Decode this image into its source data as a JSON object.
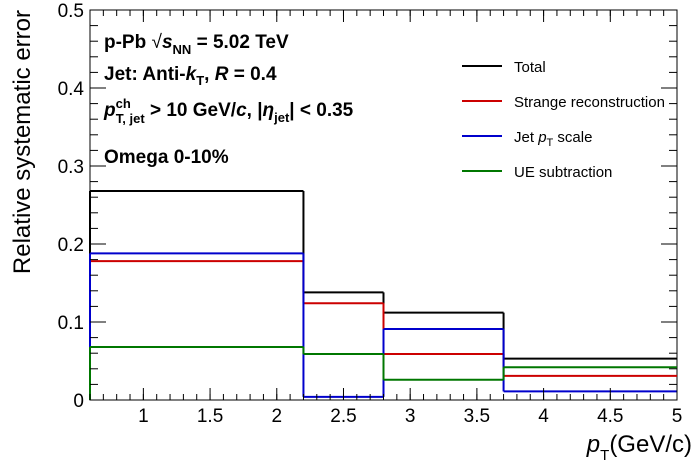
{
  "chart_data": {
    "type": "line",
    "step": true,
    "xlabel": "p_T(GeV/c)",
    "ylabel": "Relative systematic error",
    "xlim": [
      0.6,
      5.0
    ],
    "ylim": [
      0,
      0.5
    ],
    "x_ticks": [
      "1",
      "1.5",
      "2",
      "2.5",
      "3",
      "3.5",
      "4",
      "4.5",
      "5"
    ],
    "y_ticks": [
      "0",
      "0.1",
      "0.2",
      "0.3",
      "0.4",
      "0.5"
    ],
    "bin_edges": [
      0.6,
      2.2,
      2.8,
      3.7,
      5.0
    ],
    "series": [
      {
        "name": "Total",
        "color": "#000000",
        "values": [
          0.268,
          0.138,
          0.112,
          0.053
        ]
      },
      {
        "name": "Strange reconstruction",
        "color": "#cc0000",
        "values": [
          0.178,
          0.124,
          0.059,
          0.031
        ]
      },
      {
        "name": "Jet p_T scale",
        "color": "#0000cc",
        "values": [
          0.188,
          0.004,
          0.091,
          0.011
        ]
      },
      {
        "name": "UE subtraction",
        "color": "#007700",
        "values": [
          0.068,
          0.059,
          0.026,
          0.042
        ]
      }
    ],
    "legend_position": "top-right",
    "annotations": {
      "system": "p-Pb",
      "energy": "= 5.02 TeV",
      "jet_line": "Jet: Anti-k_T,  R = 0.4",
      "cut_line": "p_T,jet^ch > 10 GeV/c, |η_jet| < 0.35",
      "particle": "Omega 0-10%"
    }
  }
}
